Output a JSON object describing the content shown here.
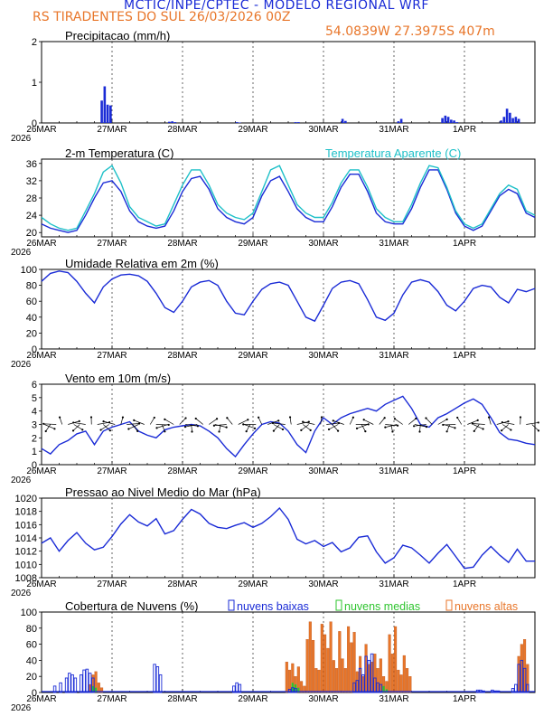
{
  "header": {
    "title": "MCTIC/INPE/CPTEC - MODELO REGIONAL WRF",
    "station_line": "RS TIRADENTES DO SUL     26/03/2026 00Z",
    "coords": "54.0839W 27.3975S 407m"
  },
  "colors": {
    "blue": "#1a2bd6",
    "cyan": "#1ec0c8",
    "orange": "#e8762a",
    "green": "#2ec42e",
    "black": "#000000"
  },
  "x_axis": {
    "labels": [
      "26MAR",
      "27MAR",
      "28MAR",
      "29MAR",
      "30MAR",
      "31MAR",
      "1APR"
    ],
    "year_label": "2026",
    "hours_total": 168
  },
  "chart_data": [
    {
      "type": "bar",
      "title": "Precipitacao (mm/h)",
      "ylim": [
        0,
        2
      ],
      "yticks": [
        0,
        1,
        2
      ],
      "series": [
        {
          "name": "Precipitacao",
          "x_hours": [
            20,
            21,
            22,
            23,
            43,
            44,
            45,
            66,
            67,
            86,
            87,
            102,
            103,
            121,
            122,
            136,
            137,
            138,
            139,
            140,
            141,
            156,
            157,
            158,
            159,
            160,
            161,
            162
          ],
          "values": [
            0.55,
            0.9,
            0.45,
            0.43,
            0.03,
            0.04,
            0.02,
            0.02,
            0.01,
            0.02,
            0.02,
            0.1,
            0.05,
            0.04,
            0.1,
            0.12,
            0.18,
            0.15,
            0.08,
            0.06,
            0.02,
            0.06,
            0.15,
            0.35,
            0.25,
            0.12,
            0.15,
            0.1
          ]
        }
      ]
    },
    {
      "type": "line",
      "title": "2-m Temperatura (C)",
      "title_right": "Temperatura Aparente (C)",
      "ylim": [
        19,
        37
      ],
      "yticks": [
        20,
        24,
        28,
        32,
        36
      ],
      "x_hours": [
        0,
        3,
        6,
        9,
        12,
        15,
        18,
        21,
        24,
        27,
        30,
        33,
        36,
        39,
        42,
        45,
        48,
        51,
        54,
        57,
        60,
        63,
        66,
        69,
        72,
        75,
        78,
        81,
        84,
        87,
        90,
        93,
        96,
        99,
        102,
        105,
        108,
        111,
        114,
        117,
        120,
        123,
        126,
        129,
        132,
        135,
        138,
        141,
        144,
        147,
        150,
        153,
        156,
        159,
        162,
        165,
        168
      ],
      "series": [
        {
          "name": "Temperatura",
          "values": [
            22,
            21,
            20.5,
            20,
            20.5,
            24,
            28,
            31.5,
            32,
            29.5,
            25,
            22.5,
            21.5,
            21,
            21.5,
            25,
            29.5,
            32.5,
            33,
            30,
            25.5,
            23.5,
            22.5,
            22,
            23.5,
            28.5,
            32,
            33,
            29.5,
            25.5,
            23.5,
            22.5,
            22.5,
            26,
            30.5,
            33.5,
            33.5,
            29.5,
            24.5,
            22.5,
            22,
            22,
            25.5,
            30.5,
            34.5,
            34.5,
            30,
            24.5,
            21.5,
            20.5,
            21.5,
            25,
            28.5,
            30,
            29,
            24.5,
            23.5
          ]
        },
        {
          "name": "Temperatura Aparente",
          "values": [
            23.5,
            22,
            21,
            20.5,
            21,
            25,
            29,
            34,
            35.5,
            31.5,
            26,
            23.5,
            22.5,
            21.5,
            22,
            26.5,
            31,
            34.5,
            34.5,
            31,
            26.5,
            24.5,
            23.5,
            23,
            24.5,
            29.5,
            34.5,
            35.5,
            31,
            26.5,
            24.5,
            23.5,
            23.5,
            27,
            31.5,
            34.5,
            34.5,
            30.5,
            25.5,
            23.5,
            22.5,
            22.5,
            26.5,
            31.5,
            35.5,
            35,
            30.5,
            25,
            22,
            21,
            22,
            25.5,
            29,
            31,
            30,
            25,
            24
          ]
        }
      ]
    },
    {
      "type": "line",
      "title": "Umidade Relativa em 2m (%)",
      "ylim": [
        0,
        100
      ],
      "yticks": [
        0,
        20,
        40,
        60,
        80,
        100
      ],
      "x_hours": [
        0,
        3,
        6,
        9,
        12,
        15,
        18,
        21,
        24,
        27,
        30,
        33,
        36,
        39,
        42,
        45,
        48,
        51,
        54,
        57,
        60,
        63,
        66,
        69,
        72,
        75,
        78,
        81,
        84,
        87,
        90,
        93,
        96,
        99,
        102,
        105,
        108,
        111,
        114,
        117,
        120,
        123,
        126,
        129,
        132,
        135,
        138,
        141,
        144,
        147,
        150,
        153,
        156,
        159,
        162,
        165,
        168
      ],
      "series": [
        {
          "name": "Umidade Relativa",
          "values": [
            85,
            95,
            98,
            96,
            85,
            70,
            58,
            78,
            88,
            93,
            94,
            92,
            85,
            70,
            52,
            46,
            60,
            78,
            84,
            86,
            80,
            60,
            45,
            43,
            60,
            75,
            82,
            84,
            80,
            60,
            40,
            35,
            55,
            76,
            84,
            86,
            82,
            62,
            40,
            36,
            45,
            68,
            84,
            87,
            84,
            72,
            55,
            48,
            60,
            76,
            80,
            78,
            65,
            58,
            75,
            72,
            76
          ]
        }
      ]
    },
    {
      "type": "line",
      "title": "Vento em 10m (m/s)",
      "ylim": [
        0,
        6
      ],
      "yticks": [
        0,
        1,
        2,
        3,
        4,
        5,
        6
      ],
      "x_hours": [
        0,
        3,
        6,
        9,
        12,
        15,
        18,
        21,
        24,
        27,
        30,
        33,
        36,
        39,
        42,
        45,
        48,
        51,
        54,
        57,
        60,
        63,
        66,
        69,
        72,
        75,
        78,
        81,
        84,
        87,
        90,
        93,
        96,
        99,
        102,
        105,
        108,
        111,
        114,
        117,
        120,
        123,
        126,
        129,
        132,
        135,
        138,
        141,
        144,
        147,
        150,
        153,
        156,
        159,
        162,
        165,
        168
      ],
      "series": [
        {
          "name": "Vento",
          "values": [
            1.2,
            0.8,
            1.5,
            1.8,
            2.3,
            2.5,
            1.5,
            2.5,
            2.8,
            3,
            3.2,
            2.5,
            2.2,
            2,
            2.6,
            2.8,
            2.9,
            3,
            2.9,
            2.5,
            2,
            1.2,
            0.6,
            1.5,
            2.3,
            3,
            3.2,
            3.1,
            2.5,
            1.5,
            0.9,
            2.5,
            3.5,
            3,
            3.5,
            3.8,
            4,
            4.2,
            4,
            4.5,
            4.8,
            5.1,
            4.2,
            3,
            2.8,
            3.5,
            3.8,
            4.2,
            4.6,
            4.9,
            4.5,
            3.5,
            2.4,
            1.9,
            1.8,
            1.6,
            1.5
          ]
        }
      ],
      "barbs_note": "direcao do vento"
    },
    {
      "type": "line",
      "title": "Pressao ao Nivel Medio do Mar (hPa)",
      "ylim": [
        1008,
        1020
      ],
      "yticks": [
        1008,
        1010,
        1012,
        1014,
        1016,
        1018,
        1020
      ],
      "x_hours": [
        0,
        3,
        6,
        9,
        12,
        15,
        18,
        21,
        24,
        27,
        30,
        33,
        36,
        39,
        42,
        45,
        48,
        51,
        54,
        57,
        60,
        63,
        66,
        69,
        72,
        75,
        78,
        81,
        84,
        87,
        90,
        93,
        96,
        99,
        102,
        105,
        108,
        111,
        114,
        117,
        120,
        123,
        126,
        129,
        132,
        135,
        138,
        141,
        144,
        147,
        150,
        153,
        156,
        159,
        162,
        165,
        168
      ],
      "series": [
        {
          "name": "Pressao",
          "values": [
            1013.2,
            1014,
            1012,
            1013.6,
            1014.8,
            1013.2,
            1012.2,
            1012.6,
            1014.2,
            1016.1,
            1017.5,
            1016.4,
            1015.8,
            1016.9,
            1014.6,
            1015.1,
            1016.8,
            1018.3,
            1017.6,
            1016.2,
            1015.6,
            1015.4,
            1015.9,
            1016.3,
            1015.6,
            1016.2,
            1017.2,
            1018.5,
            1016.8,
            1013.8,
            1013.1,
            1013.6,
            1012.7,
            1013.3,
            1011.9,
            1012.5,
            1014.1,
            1014.3,
            1011.9,
            1010.2,
            1011,
            1012.9,
            1012.5,
            1011.4,
            1010.2,
            1011.7,
            1013,
            1011.2,
            1009.4,
            1009.6,
            1011.4,
            1012.7,
            1011.4,
            1010.3,
            1012.3,
            1010.5,
            1010.5
          ]
        }
      ]
    },
    {
      "type": "bar",
      "title": "Cobertura de Nuvens (%)",
      "legend": [
        "nuvens baixas",
        "nuvens medias",
        "nuvens altas"
      ],
      "ylim": [
        0,
        100
      ],
      "yticks": [
        0,
        20,
        40,
        60,
        80,
        100
      ],
      "series": [
        {
          "name": "nuvens baixas",
          "x_hours": [
            4,
            6,
            8,
            9,
            10,
            11,
            13,
            14,
            15,
            16,
            17,
            38,
            39,
            40,
            65,
            66,
            67,
            84,
            85,
            86,
            106,
            107,
            108,
            109,
            110,
            111,
            112,
            113,
            114,
            115,
            148,
            149,
            150,
            153,
            154,
            155,
            160,
            161,
            162,
            163,
            164,
            165
          ],
          "values": [
            8,
            12,
            18,
            24,
            22,
            18,
            22,
            28,
            29,
            24,
            18,
            35,
            32,
            22,
            8,
            12,
            10,
            4,
            6,
            5,
            12,
            15,
            30,
            22,
            45,
            40,
            48,
            18,
            12,
            10,
            3,
            3,
            2,
            3,
            2,
            2,
            5,
            10,
            35,
            40,
            30,
            10
          ]
        },
        {
          "name": "nuvens medias",
          "x_hours": [
            17,
            18,
            85,
            86,
            87,
            116,
            117
          ],
          "values": [
            8,
            6,
            12,
            10,
            6,
            8,
            4
          ]
        },
        {
          "name": "nuvens altas",
          "x_hours": [
            16,
            17,
            18,
            19,
            20,
            83,
            84,
            85,
            86,
            87,
            88,
            89,
            90,
            91,
            92,
            93,
            94,
            95,
            96,
            97,
            98,
            99,
            100,
            101,
            102,
            103,
            104,
            105,
            106,
            107,
            108,
            109,
            110,
            111,
            112,
            113,
            114,
            115,
            116,
            117,
            118,
            119,
            120,
            121,
            122,
            123,
            124,
            125,
            162,
            163,
            164,
            165
          ],
          "values": [
            10,
            22,
            26,
            12,
            6,
            38,
            28,
            36,
            20,
            32,
            14,
            8,
            66,
            88,
            65,
            30,
            28,
            85,
            72,
            55,
            88,
            40,
            30,
            76,
            42,
            30,
            82,
            62,
            75,
            26,
            45,
            20,
            60,
            35,
            38,
            48,
            30,
            42,
            20,
            14,
            72,
            48,
            82,
            28,
            22,
            46,
            30,
            20,
            45,
            60,
            66,
            35
          ]
        }
      ]
    }
  ]
}
